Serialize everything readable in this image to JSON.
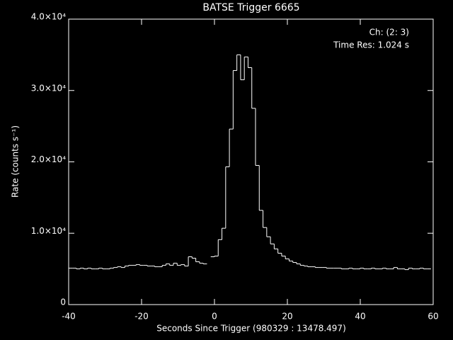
{
  "chart_data": {
    "type": "histogram",
    "title": "BATSE Trigger 6665",
    "x_label": "Seconds Since Trigger (980329 : 13478.497)",
    "y_label": "Rate (counts s⁻¹)",
    "annotations": [
      "Ch: (2: 3)",
      "Time Res: 1.024 s"
    ],
    "color": "#ffffff",
    "xlim": [
      -40,
      60
    ],
    "xticks": [
      -40,
      -20,
      0,
      20,
      40,
      60
    ],
    "ylim": [
      0,
      40000
    ],
    "yticks": [
      0,
      {
        "value": 10000,
        "label": "1.0×10⁴"
      },
      {
        "value": 20000,
        "label": "2.0×10⁴"
      },
      {
        "value": 30000,
        "label": "3.0×10⁴"
      },
      {
        "value": 40000,
        "label": "4.0×10⁴"
      }
    ],
    "bins": [
      -39.936,
      -38.912,
      -37.888,
      -36.864,
      -35.84,
      -34.816,
      -33.792,
      -32.768,
      -31.744,
      -30.72,
      -29.696,
      -28.672,
      -27.648,
      -26.624,
      -25.6,
      -24.576,
      -23.552,
      -22.528,
      -21.504,
      -20.48,
      -19.456,
      -18.432,
      -17.408,
      -16.384,
      -15.36,
      -14.336,
      -13.312,
      -12.288,
      -11.264,
      -10.24,
      -9.216,
      -8.192,
      -7.168,
      -6.144,
      -5.12,
      -4.096,
      -3.072,
      -2.048,
      -1.024,
      0,
      1.024,
      2.048,
      3.072,
      4.096,
      5.12,
      6.144,
      7.168,
      8.192,
      9.216,
      10.24,
      11.264,
      12.288,
      13.312,
      14.336,
      15.36,
      16.384,
      17.408,
      18.432,
      19.456,
      20.48,
      21.504,
      22.528,
      23.552,
      24.576,
      25.6,
      26.624,
      27.648,
      28.672,
      29.696,
      30.72,
      31.744,
      32.768,
      33.792,
      34.816,
      35.84,
      36.864,
      37.888,
      38.912,
      39.936,
      40.96,
      41.984,
      43.008,
      44.032,
      45.056,
      46.08,
      47.104,
      48.128,
      49.152,
      50.176,
      51.2,
      52.224,
      53.248,
      54.272,
      55.296,
      56.32,
      57.344,
      58.368,
      59.392
    ],
    "values": [
      5100,
      5100,
      5000,
      5100,
      5000,
      5100,
      5000,
      5000,
      5100,
      5000,
      5000,
      5100,
      5200,
      5300,
      5200,
      5400,
      5500,
      5500,
      5600,
      5500,
      5500,
      5400,
      5400,
      5300,
      5300,
      5500,
      5700,
      5500,
      5800,
      5500,
      5600,
      5400,
      6700,
      6500,
      6000,
      5800,
      5700,
      null,
      6700,
      6800,
      9100,
      10700,
      19300,
      24600,
      32800,
      35000,
      31500,
      34700,
      33200,
      27500,
      19500,
      13200,
      10800,
      9500,
      8500,
      7800,
      7200,
      6800,
      6400,
      6100,
      5900,
      5700,
      5500,
      5400,
      5300,
      5300,
      5200,
      5200,
      5200,
      5100,
      5100,
      5100,
      5100,
      5000,
      5000,
      5100,
      5000,
      5000,
      5100,
      5000,
      5000,
      5100,
      5000,
      5000,
      5100,
      5000,
      5000,
      5200,
      5000,
      5000,
      4900,
      5100,
      5000,
      5000,
      5100,
      5000,
      5000
    ]
  }
}
